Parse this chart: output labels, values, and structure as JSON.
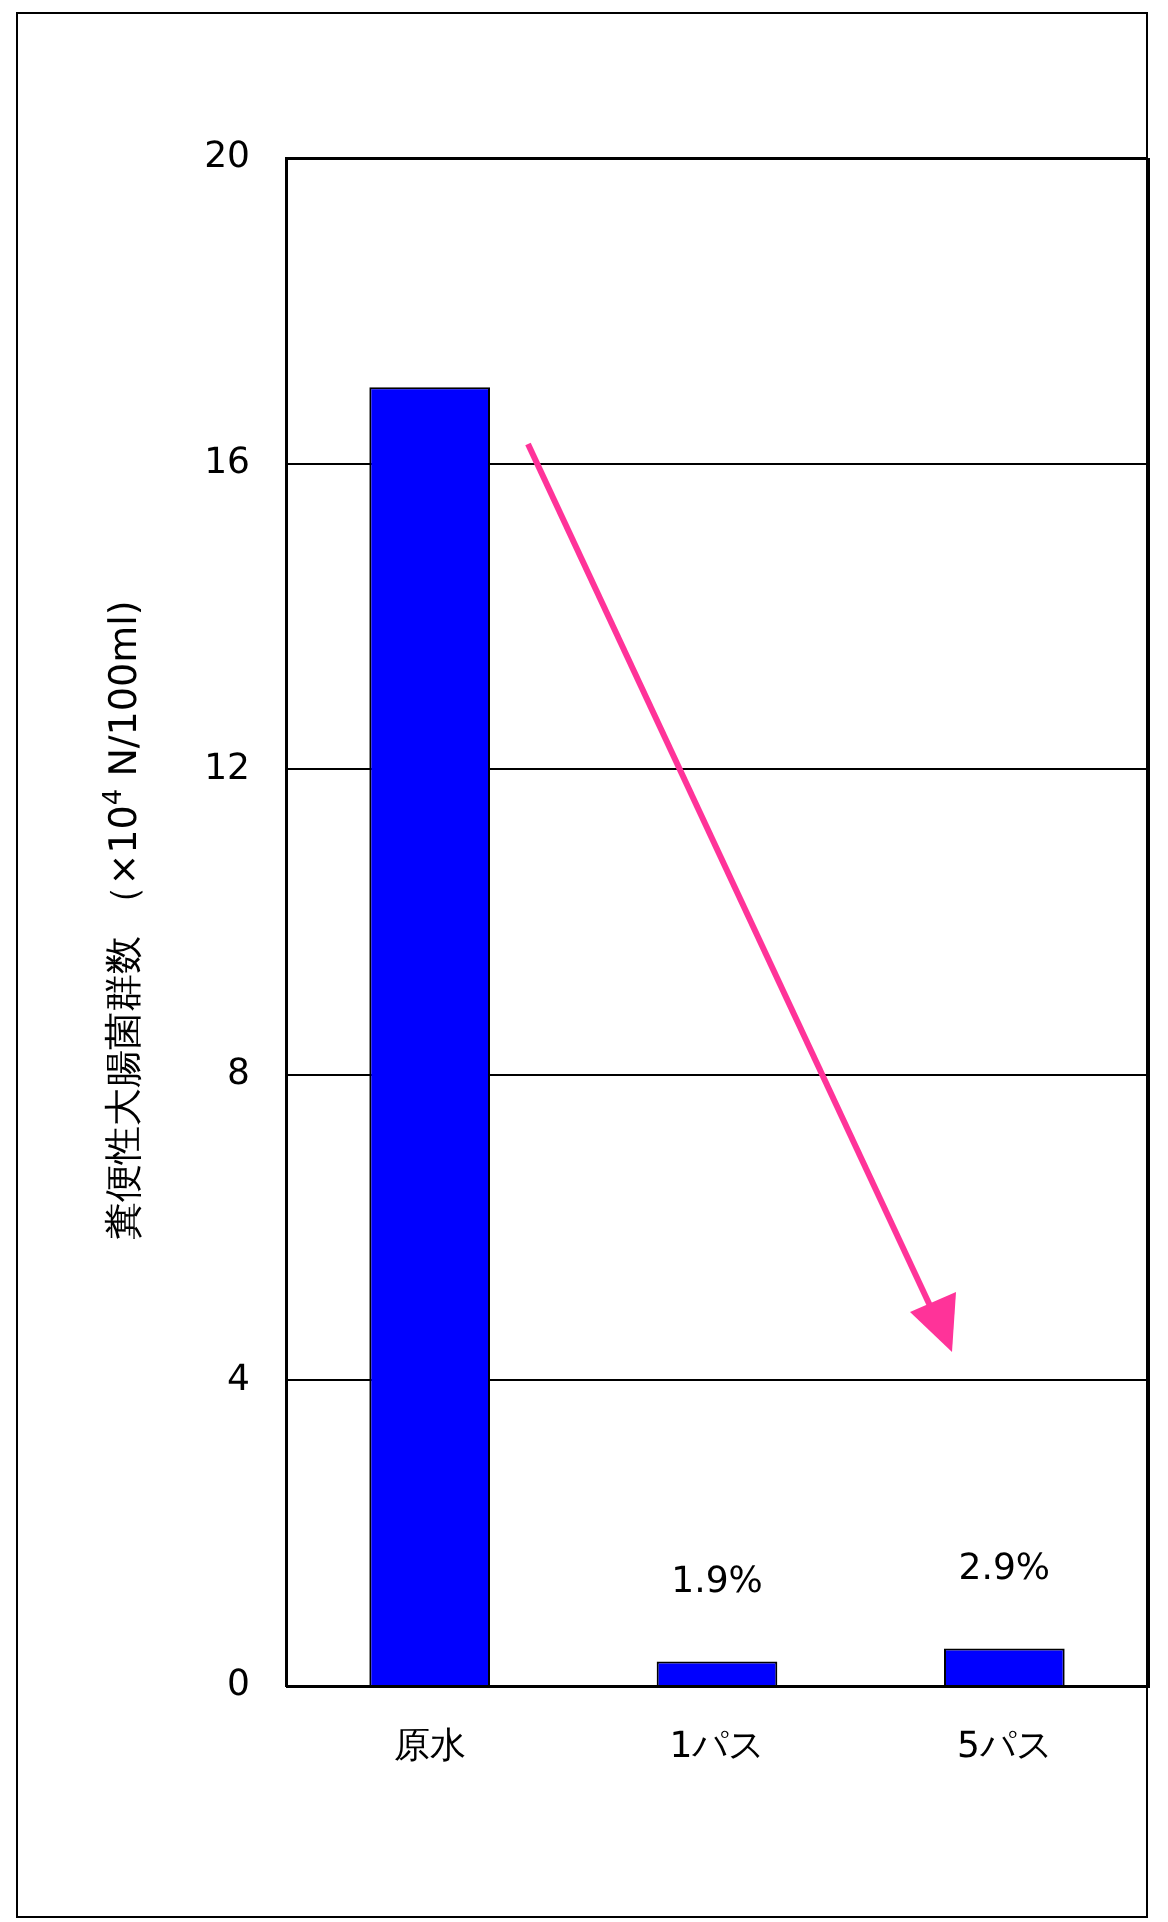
{
  "chart_data": {
    "type": "bar",
    "ylabel": "糞便性大腸菌群数 （×10$^{4}$ N/100ml)",
    "categories": [
      "原水",
      "1パス",
      "5パス"
    ],
    "values": [
      17.0,
      0.32,
      0.49
    ],
    "annotations": [
      {
        "text": "1.9%",
        "x": "1パス",
        "y": 0.32
      },
      {
        "text": "2.9%",
        "x": "5パス",
        "y": 0.49
      }
    ],
    "color": "#0000ff",
    "ylim": [
      0,
      20
    ],
    "yticks": [
      0,
      4,
      8,
      12,
      16,
      20
    ],
    "grid": "y",
    "legend": false
  }
}
